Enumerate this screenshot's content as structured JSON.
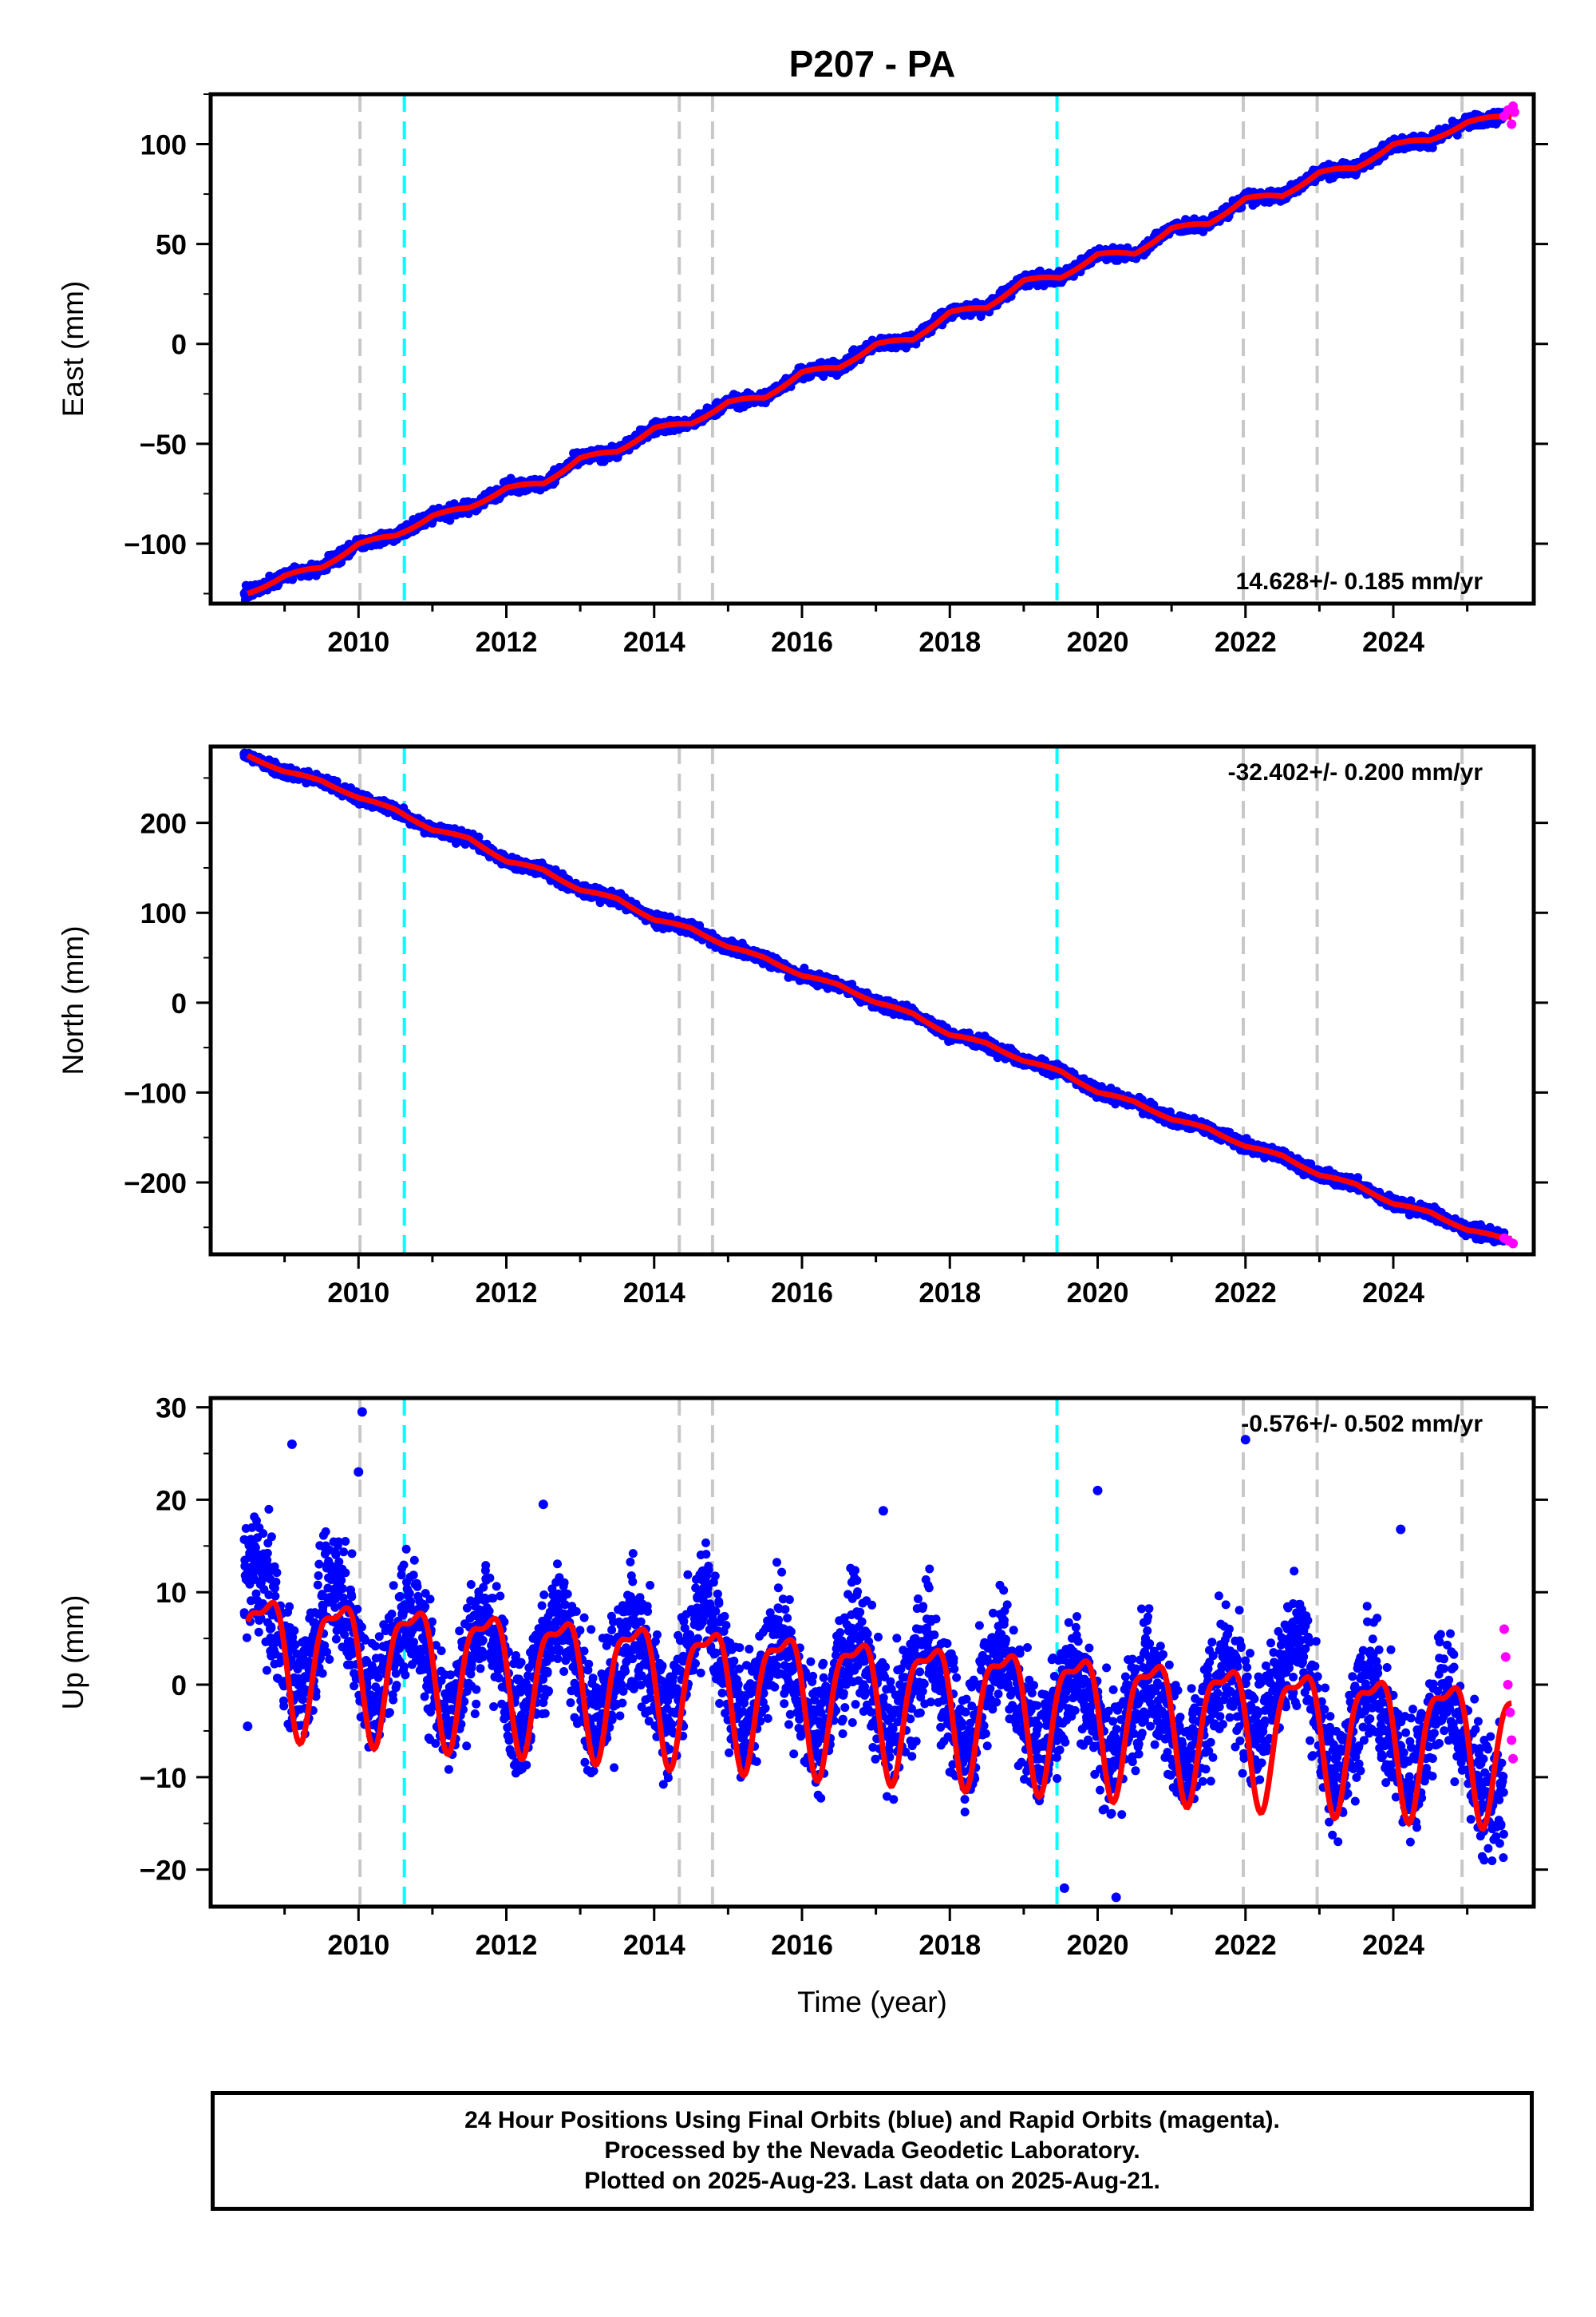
{
  "chart_data": {
    "type": "scatter",
    "title": "P207 - PA",
    "xlabel": "Time (year)",
    "xlim": [
      2008.0,
      2025.9
    ],
    "xticks": [
      2010,
      2012,
      2014,
      2016,
      2018,
      2020,
      2022,
      2024
    ],
    "event_lines": {
      "gray_dashed": [
        2010.02,
        2014.34,
        2014.79,
        2021.97,
        2022.97,
        2024.93
      ],
      "cyan_dashed": [
        2010.62,
        2019.45
      ]
    },
    "legend": "none",
    "panels": [
      {
        "ylabel": "East (mm)",
        "ylim": [
          -130,
          125
        ],
        "yticks": [
          100,
          50,
          0,
          -50,
          -100
        ],
        "ytick_labels": [
          "100",
          "50",
          "0",
          "−50",
          "−100"
        ],
        "velocity_label": "14.628+/- 0.185 mm/yr",
        "velocity_position": "bottom-right",
        "series": [
          {
            "name": "Final Orbits",
            "color": "#0000ff",
            "kind": "points",
            "x": [
              2008.5,
              2009.0,
              2009.5,
              2010.0,
              2010.5,
              2011.0,
              2011.5,
              2012.0,
              2012.5,
              2013.0,
              2013.5,
              2014.0,
              2014.5,
              2015.0,
              2015.5,
              2016.0,
              2016.5,
              2017.0,
              2017.5,
              2018.0,
              2018.5,
              2019.0,
              2019.5,
              2020.0,
              2020.5,
              2021.0,
              2021.5,
              2022.0,
              2022.5,
              2023.0,
              2023.5,
              2024.0,
              2024.5,
              2025.0,
              2025.5
            ],
            "y": [
              -125,
              -116,
              -112,
              -100,
              -96,
              -86,
              -82,
              -72,
              -70,
              -57,
              -54,
              -42,
              -40,
              -29,
              -27,
              -14,
              -12,
              0,
              2,
              16,
              18,
              32,
              33,
              45,
              45,
              58,
              60,
              73,
              74,
              86,
              88,
              100,
              102,
              111,
              114
            ]
          },
          {
            "name": "Rapid Orbits",
            "color": "#ff00ff",
            "kind": "points",
            "x": [
              2025.5,
              2025.55,
              2025.6,
              2025.62,
              2025.64
            ],
            "y": [
              114,
              117,
              110,
              119,
              116
            ]
          },
          {
            "name": "Model",
            "color": "#ff0000",
            "kind": "line",
            "trend": {
              "slope": 14.628,
              "intercept_at_2008.5": -125,
              "annual_amplitude": 2.5
            }
          }
        ]
      },
      {
        "ylabel": "North (mm)",
        "ylim": [
          -280,
          285
        ],
        "yticks": [
          200,
          100,
          0,
          -100,
          -200
        ],
        "ytick_labels": [
          "200",
          "100",
          "0",
          "−100",
          "−200"
        ],
        "velocity_label": "-32.402+/- 0.200 mm/yr",
        "velocity_position": "top-right",
        "series": [
          {
            "name": "Final Orbits",
            "color": "#0000ff",
            "kind": "points",
            "x": [
              2008.5,
              2009.0,
              2009.5,
              2010.0,
              2010.5,
              2011.0,
              2011.5,
              2012.0,
              2012.5,
              2013.0,
              2013.5,
              2014.0,
              2014.5,
              2015.0,
              2015.5,
              2016.0,
              2016.5,
              2017.0,
              2017.5,
              2018.0,
              2018.5,
              2019.0,
              2019.5,
              2020.0,
              2020.5,
              2021.0,
              2021.5,
              2022.0,
              2022.5,
              2023.0,
              2023.5,
              2024.0,
              2024.5,
              2025.0,
              2025.5
            ],
            "y": [
              275,
              257,
              247,
              228,
              215,
              192,
              183,
              157,
              148,
              125,
              116,
              92,
              83,
              62,
              50,
              30,
              20,
              0,
              -12,
              -36,
              -45,
              -65,
              -76,
              -100,
              -110,
              -130,
              -140,
              -160,
              -170,
              -192,
              -202,
              -224,
              -233,
              -253,
              -262
            ]
          },
          {
            "name": "Rapid Orbits",
            "color": "#ff00ff",
            "kind": "points",
            "x": [
              2025.5,
              2025.56,
              2025.62
            ],
            "y": [
              -262,
              -265,
              -268
            ]
          },
          {
            "name": "Model",
            "color": "#ff0000",
            "kind": "line",
            "trend": {
              "slope": -32.402,
              "intercept_at_2008.5": 275,
              "annual_amplitude": 3
            }
          }
        ]
      },
      {
        "ylabel": "Up (mm)",
        "ylim": [
          -24,
          31
        ],
        "yticks": [
          30,
          20,
          10,
          0,
          -10,
          -20
        ],
        "ytick_labels": [
          "30",
          "20",
          "10",
          "0",
          "−10",
          "−20"
        ],
        "velocity_label": "-0.576+/- 0.502 mm/yr",
        "velocity_position": "top-right",
        "series": [
          {
            "name": "Final Orbits",
            "color": "#0000ff",
            "kind": "points",
            "x": [
              2008.7,
              2009.2,
              2009.7,
              2010.2,
              2010.7,
              2011.2,
              2011.7,
              2012.2,
              2012.7,
              2013.2,
              2013.7,
              2014.2,
              2014.7,
              2015.2,
              2015.7,
              2016.2,
              2016.7,
              2017.2,
              2017.7,
              2018.2,
              2018.7,
              2019.2,
              2019.7,
              2020.2,
              2020.7,
              2021.2,
              2021.7,
              2022.2,
              2022.7,
              2023.2,
              2023.7,
              2024.2,
              2024.7,
              2025.2
            ],
            "y": [
              12,
              -1,
              12,
              -2,
              9,
              -4,
              8,
              -4,
              8,
              -5,
              7,
              -4,
              10,
              -5,
              6,
              -6,
              6,
              -6,
              5,
              -7,
              5,
              -8,
              3,
              -9,
              3,
              -10,
              2,
              -5,
              6,
              -11,
              1,
              -11,
              0,
              -12
            ],
            "outliers": [
              [
                2009.1,
                26
              ],
              [
                2010.05,
                29.5
              ],
              [
                2010.0,
                23
              ],
              [
                2012.5,
                19.5
              ],
              [
                2017.1,
                18.8
              ],
              [
                2019.55,
                -22
              ],
              [
                2020.0,
                21
              ],
              [
                2020.25,
                -23
              ],
              [
                2022.0,
                26.5
              ],
              [
                2024.1,
                16.8
              ],
              [
                2008.5,
                -4.5
              ]
            ]
          },
          {
            "name": "Rapid Orbits",
            "color": "#ff00ff",
            "kind": "points",
            "x": [
              2025.5,
              2025.52,
              2025.55,
              2025.58,
              2025.6,
              2025.62
            ],
            "y": [
              6,
              3,
              0,
              -3,
              -6,
              -8
            ]
          },
          {
            "name": "Model",
            "color": "#ff0000",
            "kind": "line",
            "trend": {
              "slope": -0.576,
              "intercept_at_2008.5": 6,
              "annual_amplitude": 7,
              "peak_phase_year_fraction": 0.72
            }
          }
        ]
      }
    ]
  },
  "footer": {
    "line1": "24 Hour Positions Using Final Orbits (blue) and Rapid Orbits (magenta).",
    "line2": "Processed by the Nevada Geodetic Laboratory.",
    "line3": "Plotted on 2025-Aug-23. Last data on 2025-Aug-21."
  }
}
